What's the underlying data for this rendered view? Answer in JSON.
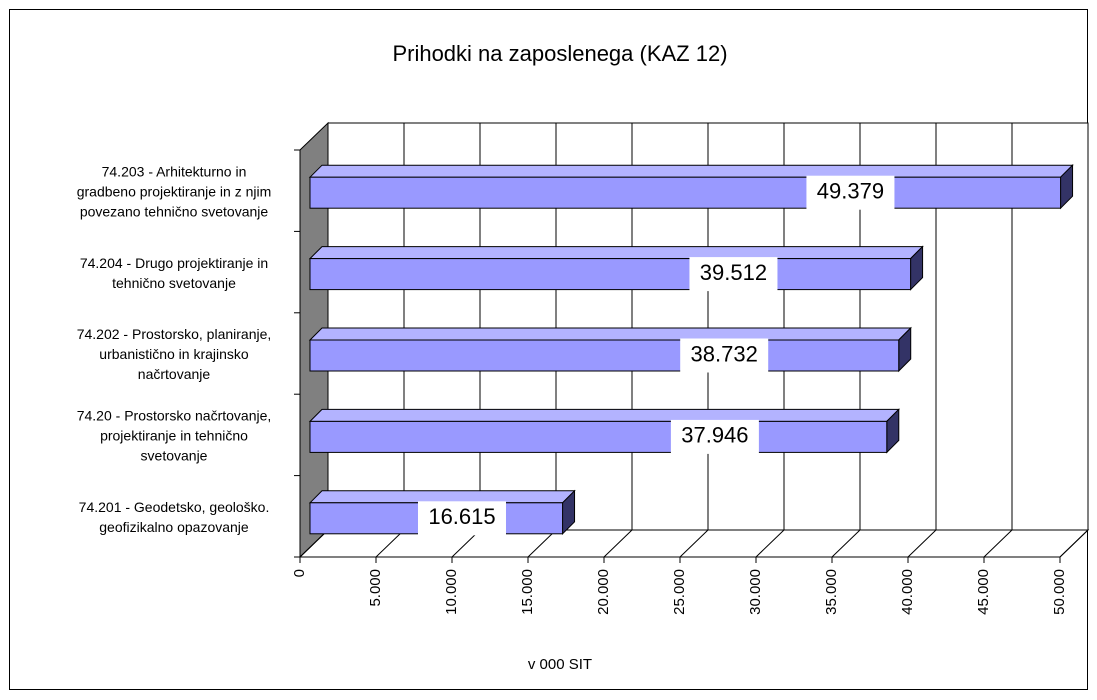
{
  "chart_data": {
    "type": "bar3d_horizontal",
    "title": "Prihodki  na  zaposlenega  (KAZ 12)",
    "x_label": "v 000 SIT",
    "categories": [
      [
        "74.203 - Arhitekturno in",
        "gradbeno projektiranje in z njim",
        "povezano tehnično svetovanje"
      ],
      [
        "74.204 - Drugo projektiranje in",
        "tehnično svetovanje"
      ],
      [
        "74.202 - Prostorsko, planiranje,",
        "urbanistično in krajinsko",
        "načrtovanje"
      ],
      [
        "74.20 - Prostorsko načrtovanje,",
        "projektiranje in tehnično",
        "svetovanje"
      ],
      [
        "74.201 - Geodetsko, geološko.",
        "geofizikalno opazovanje"
      ]
    ],
    "values": [
      49379,
      39512,
      38732,
      37946,
      16615
    ],
    "value_labels": [
      "49.379",
      "39.512",
      "38.732",
      "37.946",
      "16.615"
    ],
    "color": "#9999ff",
    "xlim": [
      0,
      50000
    ],
    "xticks": [
      0,
      {
        "value": 5000,
        "label": "5.000"
      },
      {
        "value": 10000,
        "label": "10.000"
      },
      {
        "value": 15000,
        "label": "15.000"
      },
      {
        "value": 20000,
        "label": "20.000"
      },
      {
        "value": 25000,
        "label": "25.000"
      },
      {
        "value": 30000,
        "label": "30.000"
      },
      {
        "value": 35000,
        "label": "35.000"
      },
      {
        "value": 40000,
        "label": "40.000"
      },
      {
        "value": 45000,
        "label": "45.000"
      },
      {
        "value": 50000,
        "label": "50.000"
      }
    ],
    "grid": true
  }
}
